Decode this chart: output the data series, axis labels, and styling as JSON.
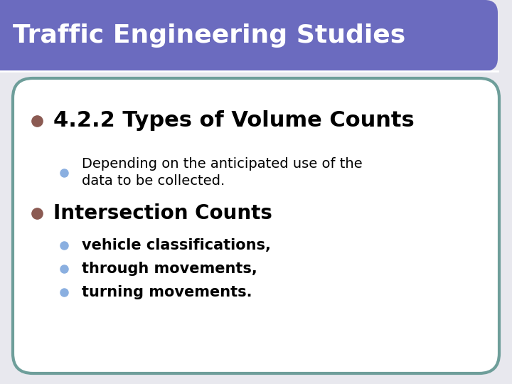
{
  "title": "Traffic Engineering Studies",
  "title_bg_color": "#6B6BBF",
  "title_text_color": "#FFFFFF",
  "title_fontsize": 26,
  "slide_bg_color": "#E8E8EE",
  "content_bg_color": "#FFFFFF",
  "border_color": "#6E9E9A",
  "border_linewidth": 3,
  "title_separator_color": "#FFFFFF",
  "bullet1_text": "4.2.2 Types of Volume Counts",
  "bullet1_fontsize": 22,
  "bullet1_color": "#000000",
  "bullet1_dot_color": "#8B5A52",
  "sub_bullet1_line1": "Depending on the anticipated use of the",
  "sub_bullet1_line2": "data to be collected.",
  "sub_bullet1_fontsize": 14,
  "sub_bullet1_color": "#000000",
  "sub_bullet1_dot_color": "#8AAFE0",
  "bullet2_text": "Intersection Counts",
  "bullet2_fontsize": 20,
  "bullet2_color": "#000000",
  "bullet2_dot_color": "#8B5A52",
  "sub_bullets2": [
    "vehicle classifications,",
    "through movements,",
    "turning movements."
  ],
  "sub_bullets2_fontsize": 15,
  "sub_bullets2_color": "#000000",
  "sub_bullets2_dot_color": "#8AAFE0"
}
